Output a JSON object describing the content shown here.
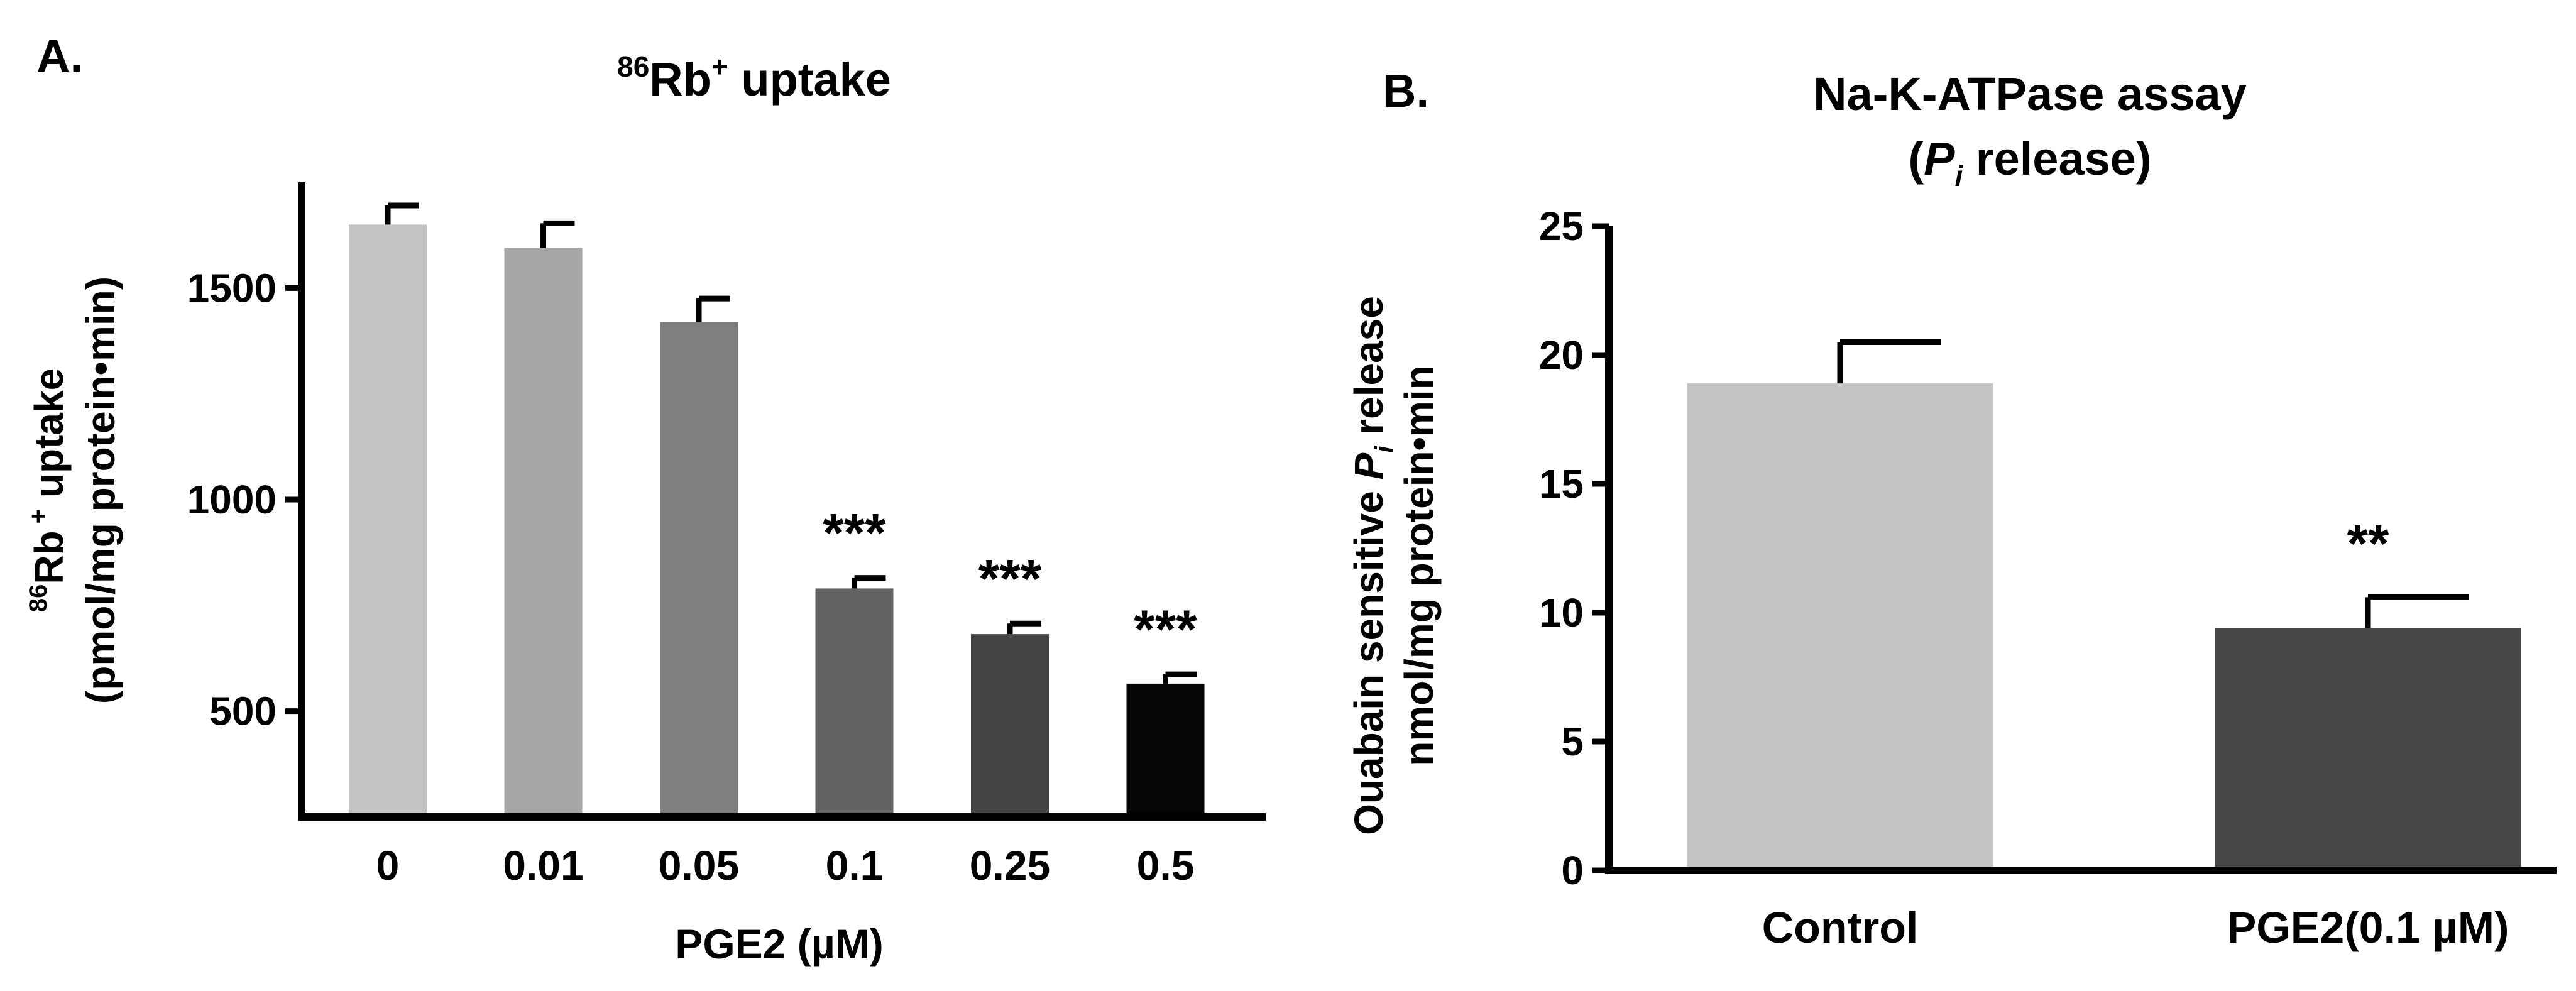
{
  "chart_data": [
    {
      "type": "bar",
      "panel_label": "A.",
      "title": {
        "sup": "86",
        "main": "Rb",
        "sup2": "+",
        "rest": " uptake"
      },
      "xlabel": "PGE2 (µM)",
      "ylabel": {
        "line1_sup": "86",
        "line1_main": "Rb",
        "line1_sup2": " +",
        "line1_rest": " uptake",
        "line2": "(pmol/mg protein•min)"
      },
      "categories": [
        "0",
        "0.01",
        "0.05",
        "0.1",
        "0.25",
        "0.5"
      ],
      "values": [
        1650,
        1595,
        1420,
        790,
        682,
        565
      ],
      "errors": [
        45,
        58,
        55,
        25,
        25,
        22
      ],
      "significance": [
        "",
        "",
        "",
        "***",
        "***",
        "***"
      ],
      "bar_colors": [
        "#c4c4c4",
        "#a6a6a6",
        "#7f7f7f",
        "#636363",
        "#454545",
        "#050505"
      ],
      "ylim": [
        250,
        1750
      ],
      "yticks": [
        500,
        1000,
        1500
      ],
      "ytick_labels": [
        "500",
        "1000",
        "1500"
      ]
    },
    {
      "type": "bar",
      "panel_label": "B.",
      "title_line1": "Na-K-ATPase assay",
      "title_line2": {
        "open": "(",
        "italic": "P",
        "sub": "i",
        "rest": " release)"
      },
      "ylabel": {
        "line1_pre": "Ouabain sensitive ",
        "line1_italic": "P",
        "line1_sub": "i",
        "line1_rest": " release",
        "line2": "nmol/mg protein•min"
      },
      "categories": [
        "Control",
        "PGE2(0.1 µM)"
      ],
      "values": [
        18.9,
        9.4
      ],
      "errors": [
        1.6,
        1.2
      ],
      "significance": [
        "",
        "**"
      ],
      "bar_colors": [
        "#c4c4c4",
        "#474747"
      ],
      "ylim": [
        0,
        25
      ],
      "yticks": [
        0,
        5,
        10,
        15,
        20,
        25
      ],
      "ytick_labels": [
        "0",
        "5",
        "10",
        "15",
        "20",
        "25"
      ]
    }
  ]
}
